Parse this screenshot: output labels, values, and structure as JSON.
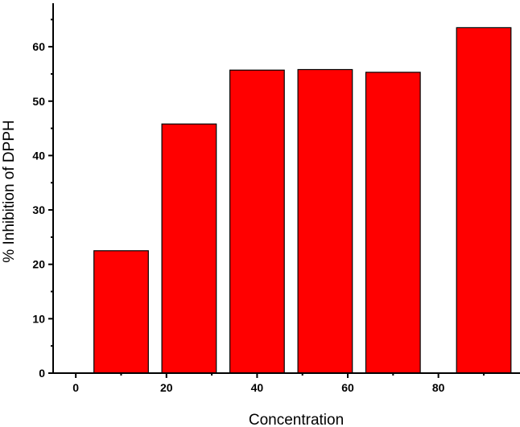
{
  "chart_data": {
    "type": "bar",
    "title": "",
    "xlabel": "Concentration",
    "ylabel": "% Inhibition of DPPH",
    "bars": [
      {
        "x": 10,
        "value": 22.5
      },
      {
        "x": 25,
        "value": 45.8
      },
      {
        "x": 40,
        "value": 55.7
      },
      {
        "x": 55,
        "value": 55.8
      },
      {
        "x": 70,
        "value": 55.3
      },
      {
        "x": 90,
        "value": 63.5
      }
    ],
    "bar_width": 12,
    "xlim": [
      -5,
      98
    ],
    "ylim": [
      0,
      68
    ],
    "x_ticks": [
      0,
      20,
      40,
      60,
      80
    ],
    "y_ticks": [
      0,
      10,
      20,
      30,
      40,
      50,
      60
    ],
    "x_tick_labels": [
      "0",
      "20",
      "40",
      "60",
      "80"
    ],
    "y_tick_labels": [
      "0",
      "10",
      "20",
      "30",
      "40",
      "50",
      "60"
    ],
    "bar_color": "#ff0000",
    "bar_edge_color": "#000000",
    "grid": false,
    "legend": "none"
  }
}
